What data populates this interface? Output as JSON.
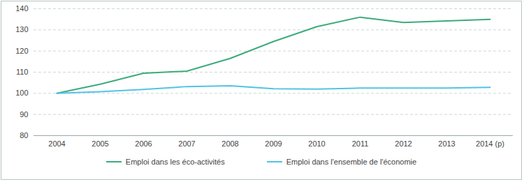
{
  "chart_data": {
    "type": "line",
    "categories": [
      "2004",
      "2005",
      "2006",
      "2007",
      "2008",
      "2009",
      "2010",
      "2011",
      "2012",
      "2013",
      "2014 (p)"
    ],
    "series": [
      {
        "name": "Emploi dans les éco-activités",
        "color": "#3dab7c",
        "values": [
          100,
          104.3,
          109.5,
          110.5,
          116.5,
          124.5,
          131.5,
          136,
          133.5,
          134.2,
          135
        ]
      },
      {
        "name": "Emploi dans l'ensemble de l'économie",
        "color": "#52c3e6",
        "values": [
          100,
          100.8,
          101.8,
          103.2,
          103.6,
          102.2,
          102,
          102.5,
          102.5,
          102.5,
          102.8
        ]
      }
    ],
    "ylim": [
      80,
      140
    ],
    "yticks": [
      80,
      90,
      100,
      110,
      120,
      130,
      140
    ],
    "grid": true,
    "legend": "bottom"
  }
}
